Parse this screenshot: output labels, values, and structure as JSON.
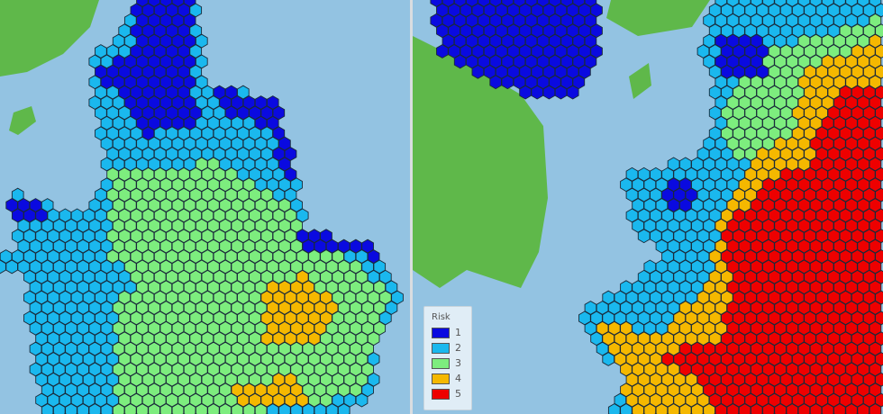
{
  "sea_color": "#93c3e2",
  "land_color": "#5fb84a",
  "hex_outline": "#1a2a3a",
  "legend": {
    "title": "Risk",
    "items": [
      {
        "label": "1",
        "color": "#0a0ae0"
      },
      {
        "label": "2",
        "color": "#1ab8ee"
      },
      {
        "label": "3",
        "color": "#7ded7e"
      },
      {
        "label": "4",
        "color": "#f5b800"
      },
      {
        "label": "5",
        "color": "#ee0000"
      }
    ]
  }
}
